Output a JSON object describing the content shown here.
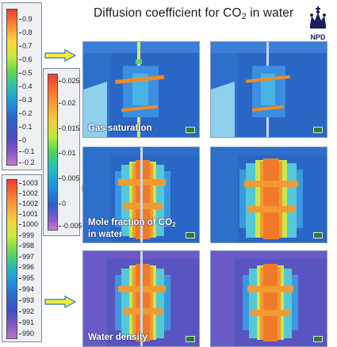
{
  "title": {
    "main": "Diffusion coefficient for CO",
    "subscript": "2",
    "tail": " in water"
  },
  "logo": {
    "text": "NPD",
    "icon": "crown-logo-icon"
  },
  "legends": {
    "saturation": {
      "ticks": [
        "0.9",
        "0.8",
        "0.7",
        "0.6",
        "0.5",
        "0.4",
        "0.3",
        "0.2",
        "0.1",
        "0",
        "-0.1",
        "-0.2"
      ]
    },
    "mole_fraction": {
      "ticks": [
        "0.025",
        "0.02",
        "0.015",
        "0.01",
        "0.005",
        "0",
        "-0.005"
      ]
    },
    "density": {
      "ticks": [
        "1003",
        "1002",
        "1002",
        "1001",
        "1000",
        "999",
        "998",
        "997",
        "996",
        "995",
        "994",
        "993",
        "992",
        "991",
        "990"
      ]
    }
  },
  "panels": {
    "row1_label": "Gas saturation",
    "row2_label_line1": "Mole fraction of CO",
    "row2_label_sub": "2",
    "row2_label_line2": "in water",
    "row3_label": "Water density"
  },
  "colors": {
    "arrow": "#f2ec3c",
    "arrow_outline": "#2b76c3",
    "plume_core": "#f08a2a",
    "plume_mid": "#3fb6e8",
    "background_blue": "#2f72c8"
  }
}
